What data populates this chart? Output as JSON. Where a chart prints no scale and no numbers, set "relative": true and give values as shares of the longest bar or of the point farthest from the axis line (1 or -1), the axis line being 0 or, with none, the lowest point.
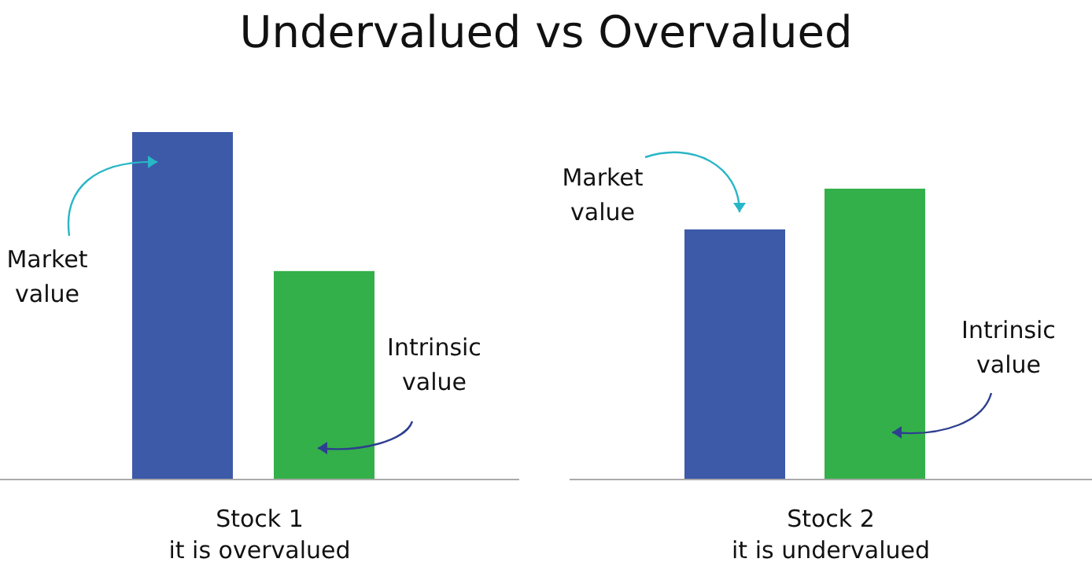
{
  "chart_data": [
    {
      "type": "bar",
      "title": "Undervalued vs Overvalued",
      "relative": true,
      "categories": [
        null,
        null
      ],
      "values": [
        1,
        0.6
      ],
      "colors": [
        "#3d5aa9",
        "#34b04a"
      ],
      "xlabel": "Stock 1\nit is overvalued",
      "annotations": [
        "Market value",
        "Intrinsic value"
      ]
    },
    {
      "type": "bar",
      "relative": true,
      "categories": [
        null,
        null
      ],
      "values": [
        0.86,
        1
      ],
      "colors": [
        "#3d5aa9",
        "#34b04a"
      ],
      "xlabel": "Stock 2\nit is undervalued",
      "annotations": [
        "Market value",
        "Intrinsic value"
      ]
    }
  ]
}
